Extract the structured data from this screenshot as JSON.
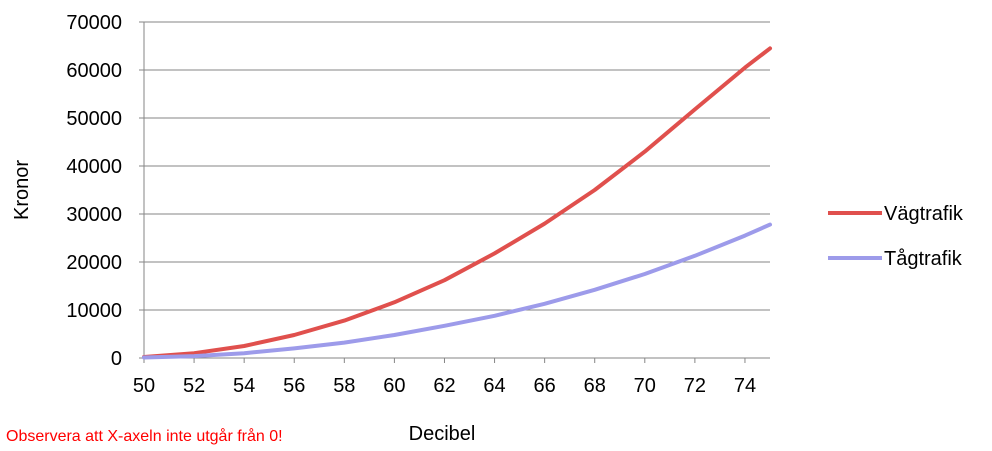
{
  "chart_data": {
    "type": "line",
    "xlabel": "Decibel",
    "ylabel": "Kronor",
    "xlim": [
      50,
      75
    ],
    "ylim": [
      0,
      70000
    ],
    "x_ticks": [
      50,
      52,
      54,
      56,
      58,
      60,
      62,
      64,
      66,
      68,
      70,
      72,
      74
    ],
    "y_ticks": [
      0,
      10000,
      20000,
      30000,
      40000,
      50000,
      60000,
      70000
    ],
    "grid": "horizontal",
    "legend_position": "right",
    "series": [
      {
        "name": "Vägtrafik",
        "color": "#e0504d",
        "x": [
          50,
          52,
          54,
          56,
          58,
          60,
          62,
          64,
          66,
          68,
          70,
          72,
          74,
          75
        ],
        "y": [
          200,
          1000,
          2500,
          4800,
          7800,
          11600,
          16200,
          21800,
          28000,
          35000,
          43000,
          51800,
          60500,
          64500
        ]
      },
      {
        "name": "Tågtrafik",
        "color": "#9d9bea",
        "x": [
          50,
          52,
          54,
          56,
          58,
          60,
          62,
          64,
          66,
          68,
          70,
          72,
          74,
          75
        ],
        "y": [
          100,
          400,
          1000,
          2000,
          3200,
          4800,
          6700,
          8800,
          11300,
          14200,
          17500,
          21300,
          25500,
          27800
        ]
      }
    ]
  },
  "note": "Observera att X-axeln inte utgår från 0!"
}
